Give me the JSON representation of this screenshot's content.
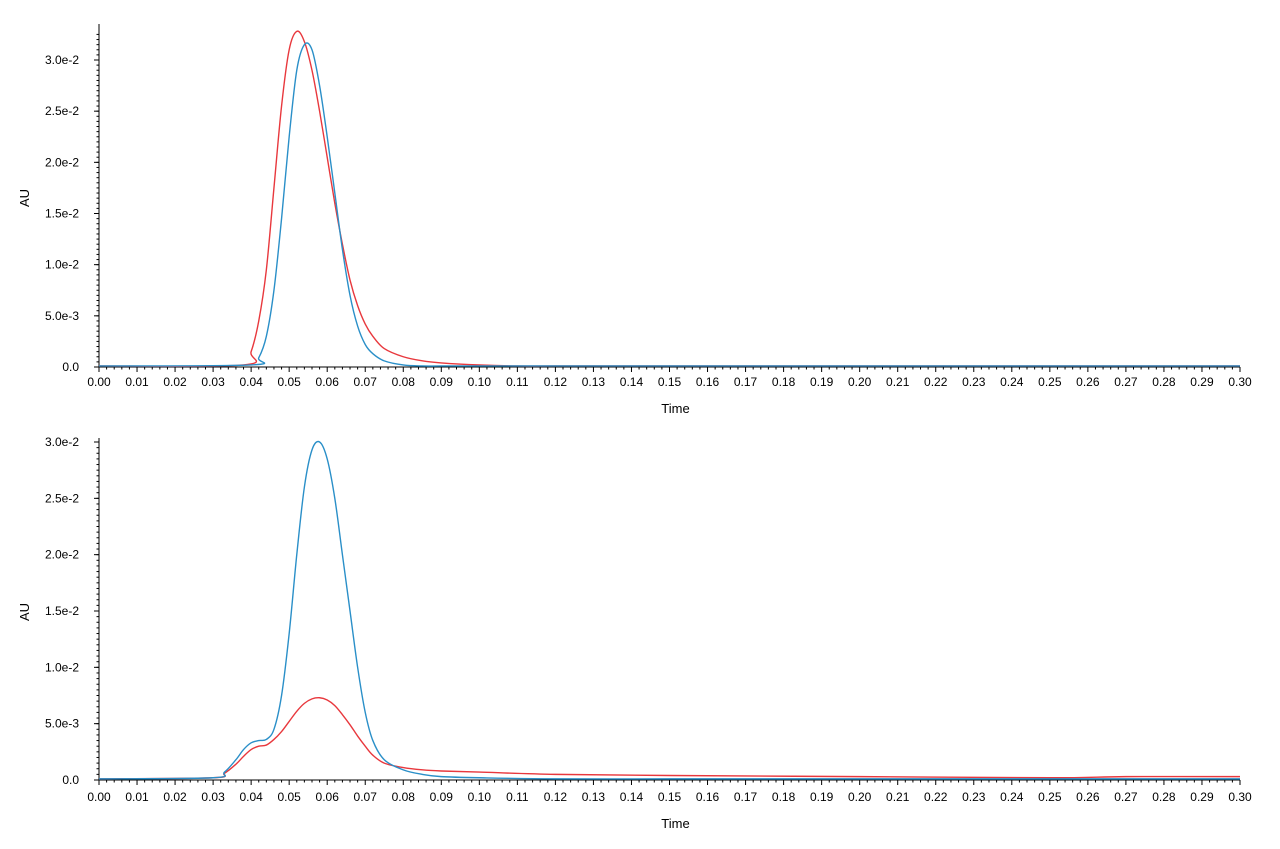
{
  "chart_data": [
    {
      "type": "line",
      "xlabel": "Time",
      "ylabel": "AU",
      "xlim": [
        0.0,
        0.3
      ],
      "ylim": [
        0.0,
        0.0325
      ],
      "xticks": [
        "0.00",
        "0.01",
        "0.02",
        "0.03",
        "0.04",
        "0.05",
        "0.06",
        "0.07",
        "0.08",
        "0.09",
        "0.10",
        "0.11",
        "0.12",
        "0.13",
        "0.14",
        "0.15",
        "0.16",
        "0.17",
        "0.18",
        "0.19",
        "0.20",
        "0.21",
        "0.22",
        "0.23",
        "0.24",
        "0.25",
        "0.26",
        "0.27",
        "0.28",
        "0.29",
        "0.30"
      ],
      "yticks": [
        {
          "value": 0.0,
          "label": "0.0"
        },
        {
          "value": 0.005,
          "label": "5.0e-3"
        },
        {
          "value": 0.01,
          "label": "1.0e-2"
        },
        {
          "value": 0.015,
          "label": "1.5e-2"
        },
        {
          "value": 0.02,
          "label": "2.0e-2"
        },
        {
          "value": 0.025,
          "label": "2.5e-2"
        },
        {
          "value": 0.03,
          "label": "3.0e-2"
        }
      ],
      "series": [
        {
          "color": "#e8383d",
          "x": [
            0.0,
            0.038,
            0.04,
            0.042,
            0.044,
            0.046,
            0.048,
            0.05,
            0.052,
            0.054,
            0.056,
            0.058,
            0.06,
            0.062,
            0.064,
            0.066,
            0.068,
            0.07,
            0.072,
            0.075,
            0.08,
            0.085,
            0.09,
            0.1,
            0.11,
            0.12,
            0.15,
            0.2,
            0.25,
            0.3
          ],
          "y": [
            0.0001,
            0.0002,
            0.0015,
            0.0045,
            0.0095,
            0.0175,
            0.0255,
            0.031,
            0.0328,
            0.0318,
            0.029,
            0.025,
            0.0205,
            0.016,
            0.012,
            0.0085,
            0.006,
            0.0042,
            0.003,
            0.0018,
            0.001,
            0.0006,
            0.0004,
            0.0002,
            0.0001,
            0.0001,
            0.0001,
            0.0001,
            0.0001,
            0.0001
          ]
        },
        {
          "color": "#2a8fc8",
          "x": [
            0.0,
            0.04,
            0.042,
            0.044,
            0.046,
            0.048,
            0.05,
            0.052,
            0.054,
            0.056,
            0.058,
            0.06,
            0.062,
            0.064,
            0.066,
            0.068,
            0.07,
            0.072,
            0.075,
            0.08,
            0.085,
            0.09,
            0.1,
            0.15,
            0.2,
            0.25,
            0.3
          ],
          "y": [
            0.0001,
            0.0002,
            0.0009,
            0.003,
            0.0075,
            0.0145,
            0.0225,
            0.029,
            0.0315,
            0.031,
            0.0275,
            0.0225,
            0.017,
            0.0115,
            0.007,
            0.004,
            0.0022,
            0.0013,
            0.0006,
            0.0002,
            0.0001,
            0.0001,
            0.0001,
            0.0001,
            0.0001,
            0.0001,
            0.0001
          ]
        }
      ]
    },
    {
      "type": "line",
      "xlabel": "Time",
      "ylabel": "AU",
      "xlim": [
        0.0,
        0.3
      ],
      "ylim": [
        0.0,
        0.03
      ],
      "xticks": [
        "0.00",
        "0.01",
        "0.02",
        "0.03",
        "0.04",
        "0.05",
        "0.06",
        "0.07",
        "0.08",
        "0.09",
        "0.10",
        "0.11",
        "0.12",
        "0.13",
        "0.14",
        "0.15",
        "0.16",
        "0.17",
        "0.18",
        "0.19",
        "0.20",
        "0.21",
        "0.22",
        "0.23",
        "0.24",
        "0.25",
        "0.26",
        "0.27",
        "0.28",
        "0.29",
        "0.30"
      ],
      "yticks": [
        {
          "value": 0.0,
          "label": "0.0"
        },
        {
          "value": 0.005,
          "label": "5.0e-3"
        },
        {
          "value": 0.01,
          "label": "1.0e-2"
        },
        {
          "value": 0.015,
          "label": "1.5e-2"
        },
        {
          "value": 0.02,
          "label": "2.0e-2"
        },
        {
          "value": 0.025,
          "label": "2.5e-2"
        },
        {
          "value": 0.03,
          "label": "3.0e-2"
        }
      ],
      "series": [
        {
          "color": "#e8383d",
          "x": [
            0.0,
            0.03,
            0.033,
            0.036,
            0.038,
            0.04,
            0.042,
            0.044,
            0.046,
            0.048,
            0.05,
            0.052,
            0.054,
            0.056,
            0.058,
            0.06,
            0.062,
            0.064,
            0.066,
            0.068,
            0.07,
            0.072,
            0.075,
            0.08,
            0.085,
            0.09,
            0.1,
            0.12,
            0.15,
            0.2,
            0.25,
            0.27,
            0.3
          ],
          "y": [
            0.0001,
            0.0002,
            0.0006,
            0.0014,
            0.0021,
            0.0027,
            0.003,
            0.0031,
            0.0036,
            0.0043,
            0.0052,
            0.0061,
            0.0068,
            0.0072,
            0.0073,
            0.0071,
            0.0066,
            0.0058,
            0.0049,
            0.0039,
            0.003,
            0.0022,
            0.0015,
            0.0011,
            0.0009,
            0.0008,
            0.0007,
            0.0005,
            0.0004,
            0.0003,
            0.0002,
            0.0003,
            0.0003
          ]
        },
        {
          "color": "#2a8fc8",
          "x": [
            0.0,
            0.03,
            0.033,
            0.036,
            0.038,
            0.04,
            0.042,
            0.044,
            0.046,
            0.048,
            0.05,
            0.052,
            0.054,
            0.056,
            0.058,
            0.06,
            0.062,
            0.064,
            0.066,
            0.068,
            0.07,
            0.072,
            0.075,
            0.08,
            0.085,
            0.09,
            0.1,
            0.12,
            0.15,
            0.16,
            0.2,
            0.3
          ],
          "y": [
            0.0001,
            0.0002,
            0.0007,
            0.0018,
            0.0027,
            0.0033,
            0.0035,
            0.0036,
            0.0045,
            0.0075,
            0.013,
            0.02,
            0.026,
            0.0293,
            0.03,
            0.0285,
            0.025,
            0.02,
            0.015,
            0.01,
            0.006,
            0.0035,
            0.0018,
            0.0009,
            0.0005,
            0.0003,
            0.0002,
            0.0001,
            0.0001,
            0.0001,
            0.0001,
            0.0001
          ]
        }
      ]
    }
  ]
}
